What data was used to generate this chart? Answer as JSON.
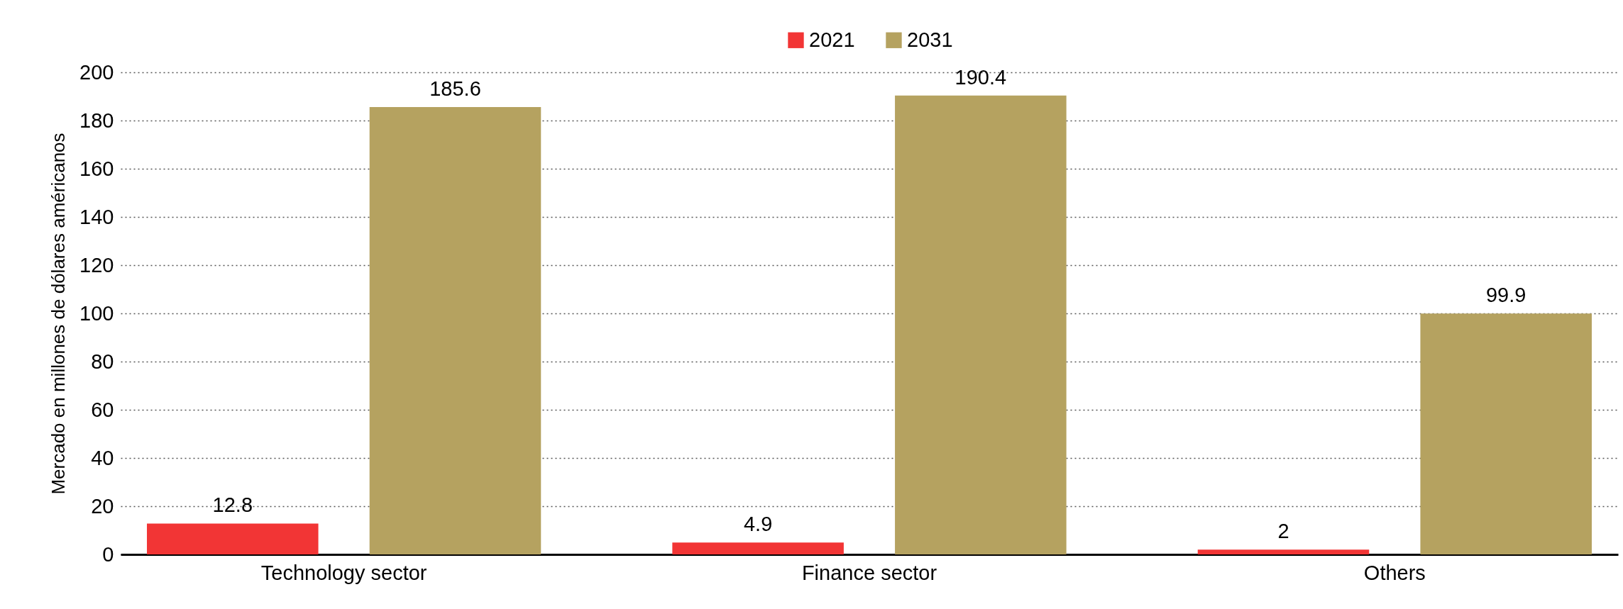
{
  "chart_data": {
    "type": "bar",
    "ylabel": "Mercado en millones de dólares américanos",
    "categories": [
      "Technology sector",
      "Finance sector",
      "Others"
    ],
    "series": [
      {
        "name": "2021",
        "color": "#f23535",
        "values": [
          12.8,
          4.9,
          2
        ]
      },
      {
        "name": "2031",
        "color": "#b5a260",
        "values": [
          185.6,
          190.4,
          99.9
        ]
      }
    ],
    "ylim": [
      0,
      200
    ],
    "yticks": [
      0,
      20,
      40,
      60,
      80,
      100,
      120,
      140,
      160,
      180,
      200
    ],
    "grid": "y",
    "legend": "top",
    "data_labels": true
  }
}
